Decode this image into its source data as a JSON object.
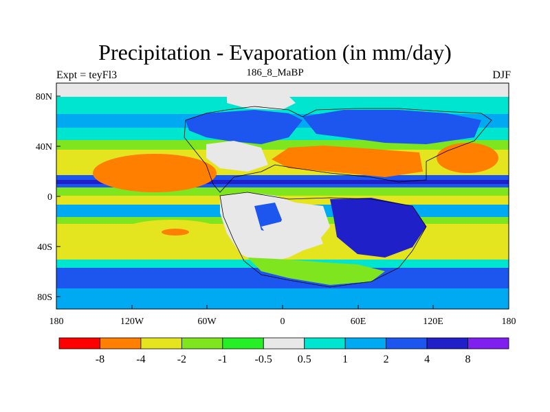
{
  "title": "Precipitation - Evaporation (in mm/day)",
  "subtitle_center": "186_8_MaBP",
  "subtitle_left": "Expt = teyFl3",
  "subtitle_right": "DJF",
  "map": {
    "x_ticks": [
      "180",
      "120W",
      "60W",
      "0",
      "60E",
      "120E",
      "180"
    ],
    "y_ticks": [
      "80N",
      "40N",
      "0",
      "40S",
      "80S"
    ],
    "lon_range": [
      -180,
      180
    ],
    "lat_range": [
      -90,
      90
    ],
    "colors": {
      "background": "#e8e8e8",
      "dry_strong": "#ff7f00",
      "dry_mid": "#e5e51f",
      "dry_light": "#7fe51f",
      "dry_min": "#26ef26",
      "neutral": "#e8e8e8",
      "wet_min": "#00e5d0",
      "wet_light": "#00aaf2",
      "wet_mid": "#1c56ee",
      "wet_strong": "#2020c8"
    }
  },
  "colorbar": {
    "colors": [
      "#ff0000",
      "#ff7f00",
      "#e5e51f",
      "#7fe51f",
      "#26ef26",
      "#e8e8e8",
      "#00e5d0",
      "#00aaf2",
      "#1c56ee",
      "#2020c8",
      "#8020f0"
    ],
    "labels": [
      "-8",
      "-4",
      "-2",
      "-1",
      "-0.5",
      "0.5",
      "1",
      "2",
      "4",
      "8"
    ]
  }
}
